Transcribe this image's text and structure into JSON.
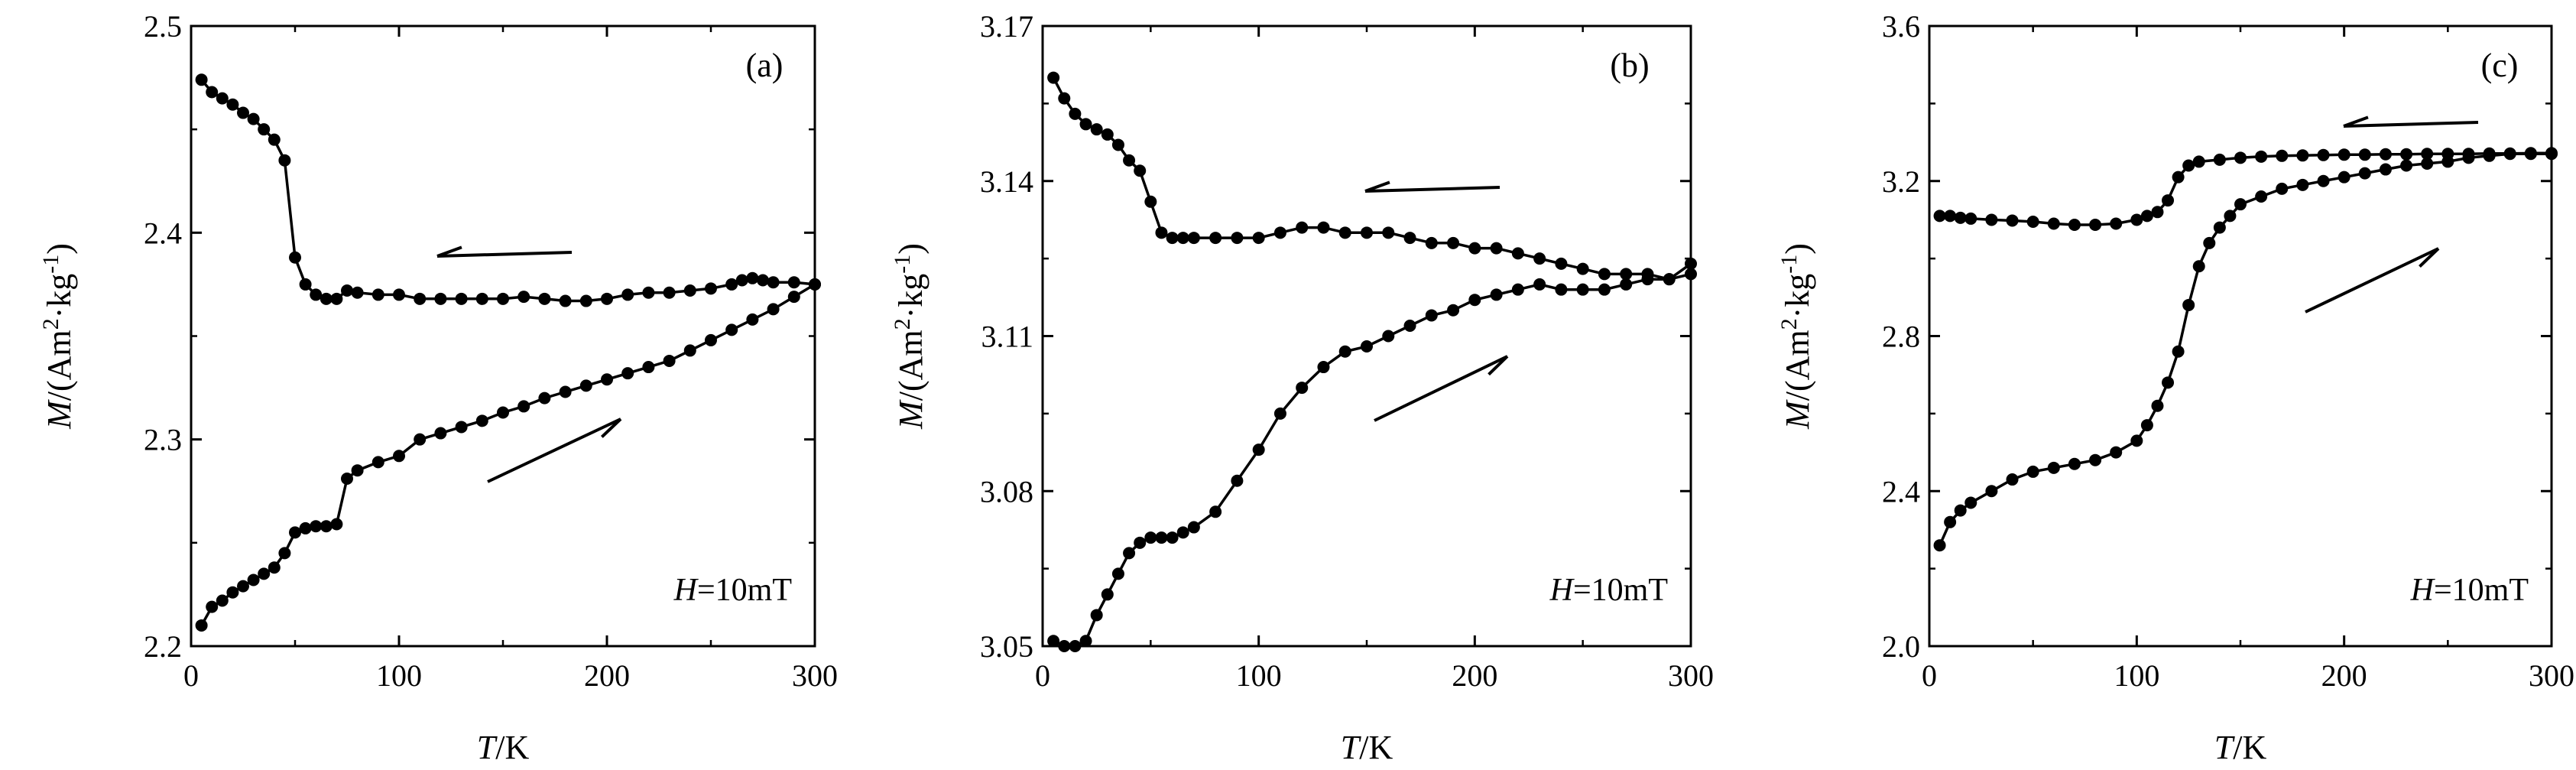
{
  "chart_data": [
    {
      "type": "line",
      "panel_label": "(a)",
      "annotation_var": "H",
      "annotation_val": "=10mT",
      "xlabel_var": "T",
      "xlabel_unit": "/K",
      "ylabel_var": "M",
      "ylabel_unit_pre": "/(Am",
      "ylabel_sup1": "2",
      "ylabel_mid": "·kg",
      "ylabel_sup2": "-1",
      "ylabel_close": ")",
      "xlim": [
        0,
        300
      ],
      "ylim": [
        2.2,
        2.5
      ],
      "xticks": [
        0,
        100,
        200,
        300
      ],
      "yticks": [
        2.2,
        2.3,
        2.4,
        2.5
      ],
      "ytick_labels": [
        "2.2",
        "2.3",
        "2.4",
        "2.5"
      ],
      "series": [
        {
          "direction": "cooling",
          "x": [
            5,
            10,
            15,
            20,
            25,
            30,
            35,
            40,
            45,
            50,
            55,
            60,
            65,
            70,
            75,
            80,
            90,
            100,
            110,
            120,
            130,
            140,
            150,
            160,
            170,
            180,
            190,
            200,
            210,
            220,
            230,
            240,
            250,
            260,
            265,
            270,
            275,
            280,
            290,
            300
          ],
          "values": [
            2.474,
            2.468,
            2.465,
            2.462,
            2.458,
            2.455,
            2.45,
            2.445,
            2.435,
            2.388,
            2.375,
            2.37,
            2.368,
            2.368,
            2.372,
            2.371,
            2.37,
            2.37,
            2.368,
            2.368,
            2.368,
            2.368,
            2.368,
            2.369,
            2.368,
            2.367,
            2.367,
            2.368,
            2.37,
            2.371,
            2.371,
            2.372,
            2.373,
            2.375,
            2.377,
            2.378,
            2.377,
            2.376,
            2.376,
            2.375
          ]
        },
        {
          "direction": "warming",
          "x": [
            5,
            10,
            15,
            20,
            25,
            30,
            35,
            40,
            45,
            50,
            55,
            60,
            65,
            70,
            75,
            80,
            90,
            100,
            110,
            120,
            130,
            140,
            150,
            160,
            170,
            180,
            190,
            200,
            210,
            220,
            230,
            240,
            250,
            260,
            270,
            280,
            290,
            300
          ],
          "values": [
            2.21,
            2.219,
            2.222,
            2.226,
            2.229,
            2.232,
            2.235,
            2.238,
            2.245,
            2.255,
            2.257,
            2.258,
            2.258,
            2.259,
            2.281,
            2.285,
            2.289,
            2.292,
            2.3,
            2.303,
            2.306,
            2.309,
            2.313,
            2.316,
            2.32,
            2.323,
            2.326,
            2.329,
            2.332,
            2.335,
            2.338,
            2.343,
            2.348,
            2.353,
            2.358,
            2.363,
            2.369,
            2.375
          ]
        }
      ]
    },
    {
      "type": "line",
      "panel_label": "(b)",
      "annotation_var": "H",
      "annotation_val": "=10mT",
      "xlabel_var": "T",
      "xlabel_unit": "/K",
      "ylabel_var": "M",
      "ylabel_unit_pre": "/(Am",
      "ylabel_sup1": "2",
      "ylabel_mid": "·kg",
      "ylabel_sup2": "-1",
      "ylabel_close": ")",
      "xlim": [
        0,
        300
      ],
      "ylim": [
        3.05,
        3.17
      ],
      "xticks": [
        0,
        100,
        200,
        300
      ],
      "yticks": [
        3.05,
        3.08,
        3.11,
        3.14,
        3.17
      ],
      "ytick_labels": [
        "3.05",
        "3.08",
        "3.11",
        "3.14",
        "3.17"
      ],
      "series": [
        {
          "direction": "cooling",
          "x": [
            5,
            10,
            15,
            20,
            25,
            30,
            35,
            40,
            45,
            50,
            55,
            60,
            65,
            70,
            80,
            90,
            100,
            110,
            120,
            130,
            140,
            150,
            160,
            170,
            180,
            190,
            200,
            210,
            220,
            230,
            240,
            250,
            260,
            270,
            280,
            290,
            300
          ],
          "values": [
            3.16,
            3.156,
            3.153,
            3.151,
            3.15,
            3.149,
            3.147,
            3.144,
            3.142,
            3.136,
            3.13,
            3.129,
            3.129,
            3.129,
            3.129,
            3.129,
            3.129,
            3.13,
            3.131,
            3.131,
            3.13,
            3.13,
            3.13,
            3.129,
            3.128,
            3.128,
            3.127,
            3.127,
            3.126,
            3.125,
            3.124,
            3.123,
            3.122,
            3.122,
            3.122,
            3.121,
            3.124
          ]
        },
        {
          "direction": "warming",
          "x": [
            5,
            10,
            15,
            20,
            25,
            30,
            35,
            40,
            45,
            50,
            55,
            60,
            65,
            70,
            80,
            90,
            100,
            110,
            120,
            130,
            140,
            150,
            160,
            170,
            180,
            190,
            200,
            210,
            220,
            230,
            240,
            250,
            260,
            270,
            280,
            290,
            300
          ],
          "values": [
            3.051,
            3.05,
            3.05,
            3.051,
            3.056,
            3.06,
            3.064,
            3.068,
            3.07,
            3.071,
            3.071,
            3.071,
            3.072,
            3.073,
            3.076,
            3.082,
            3.088,
            3.095,
            3.1,
            3.104,
            3.107,
            3.108,
            3.11,
            3.112,
            3.114,
            3.115,
            3.117,
            3.118,
            3.119,
            3.12,
            3.119,
            3.119,
            3.119,
            3.12,
            3.121,
            3.121,
            3.122
          ]
        }
      ]
    },
    {
      "type": "line",
      "panel_label": "(c)",
      "annotation_var": "H",
      "annotation_val": "=10mT",
      "xlabel_var": "T",
      "xlabel_unit": "/K",
      "ylabel_var": "M",
      "ylabel_unit_pre": "/(Am",
      "ylabel_sup1": "2",
      "ylabel_mid": "·kg",
      "ylabel_sup2": "-1",
      "ylabel_close": ")",
      "xlim": [
        0,
        300
      ],
      "ylim": [
        2.0,
        3.6
      ],
      "xticks": [
        0,
        100,
        200,
        300
      ],
      "yticks": [
        2.0,
        2.4,
        2.8,
        3.2,
        3.6
      ],
      "ytick_labels": [
        "2.0",
        "2.4",
        "2.8",
        "3.2",
        "3.6"
      ],
      "series": [
        {
          "direction": "cooling",
          "x": [
            5,
            10,
            15,
            20,
            30,
            40,
            50,
            60,
            70,
            80,
            90,
            100,
            105,
            110,
            115,
            120,
            125,
            130,
            140,
            150,
            160,
            170,
            180,
            190,
            200,
            210,
            220,
            230,
            240,
            250,
            260,
            270,
            280,
            290,
            300
          ],
          "values": [
            3.11,
            3.11,
            3.105,
            3.103,
            3.1,
            3.098,
            3.095,
            3.09,
            3.087,
            3.087,
            3.09,
            3.1,
            3.11,
            3.12,
            3.15,
            3.21,
            3.24,
            3.25,
            3.255,
            3.26,
            3.263,
            3.265,
            3.266,
            3.267,
            3.268,
            3.268,
            3.269,
            3.269,
            3.27,
            3.27,
            3.27,
            3.271,
            3.271,
            3.272,
            3.272
          ]
        },
        {
          "direction": "warming",
          "x": [
            5,
            10,
            15,
            20,
            30,
            40,
            50,
            60,
            70,
            80,
            90,
            100,
            105,
            110,
            115,
            120,
            125,
            130,
            135,
            140,
            145,
            150,
            160,
            170,
            180,
            190,
            200,
            210,
            220,
            230,
            240,
            250,
            260,
            270,
            280,
            290,
            300
          ],
          "values": [
            2.26,
            2.32,
            2.35,
            2.37,
            2.4,
            2.43,
            2.45,
            2.46,
            2.47,
            2.48,
            2.5,
            2.53,
            2.57,
            2.62,
            2.68,
            2.76,
            2.88,
            2.98,
            3.04,
            3.08,
            3.11,
            3.14,
            3.16,
            3.18,
            3.19,
            3.2,
            3.21,
            3.22,
            3.23,
            3.24,
            3.245,
            3.25,
            3.26,
            3.265,
            3.27,
            3.27,
            3.27
          ]
        }
      ]
    }
  ]
}
